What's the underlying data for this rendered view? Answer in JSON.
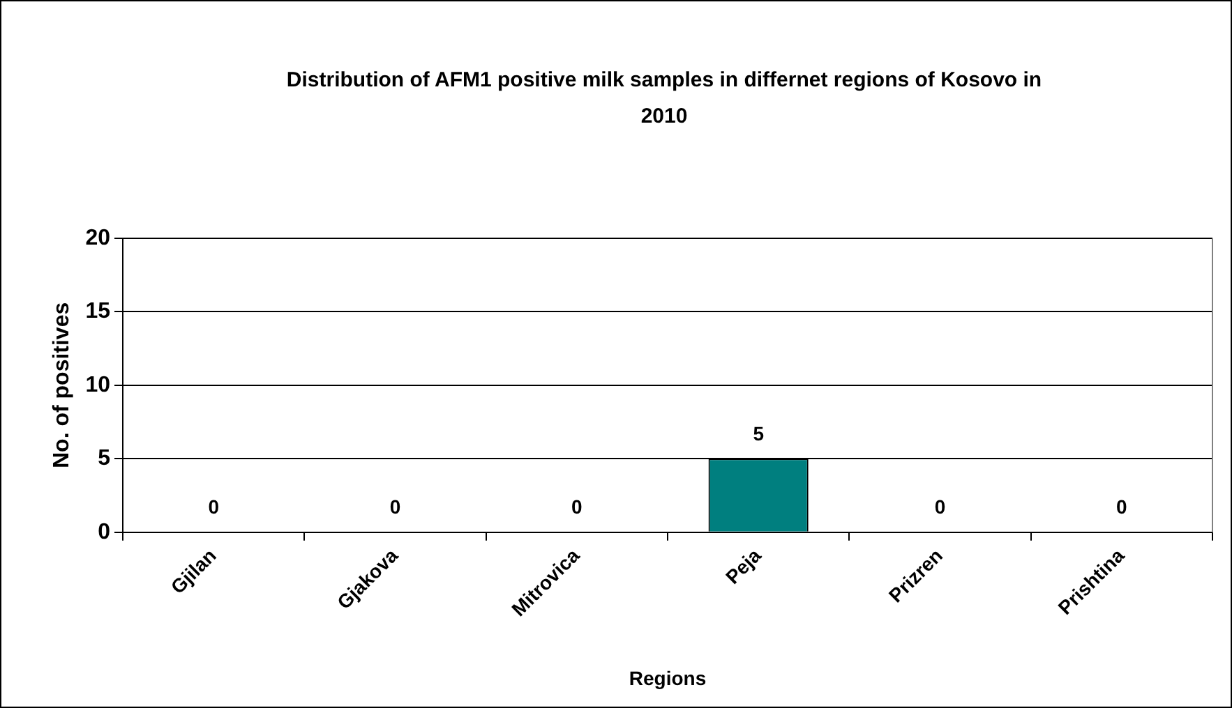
{
  "chart_data": {
    "type": "bar",
    "title": "Distribution of AFM1 positive milk samples in differnet regions of Kosovo in 2010",
    "xlabel": "Regions",
    "ylabel": "No. of positives",
    "categories": [
      "Gjilan",
      "Gjakova",
      "Mitrovica",
      "Peja",
      "Prizren",
      "Prishtina"
    ],
    "values": [
      0,
      0,
      0,
      5,
      0,
      0
    ],
    "color": "#007f7f",
    "ylim": [
      0,
      20
    ],
    "yticks": [
      0,
      5,
      10,
      15,
      20
    ],
    "grid": "y",
    "legend": false,
    "data_labels": true
  }
}
